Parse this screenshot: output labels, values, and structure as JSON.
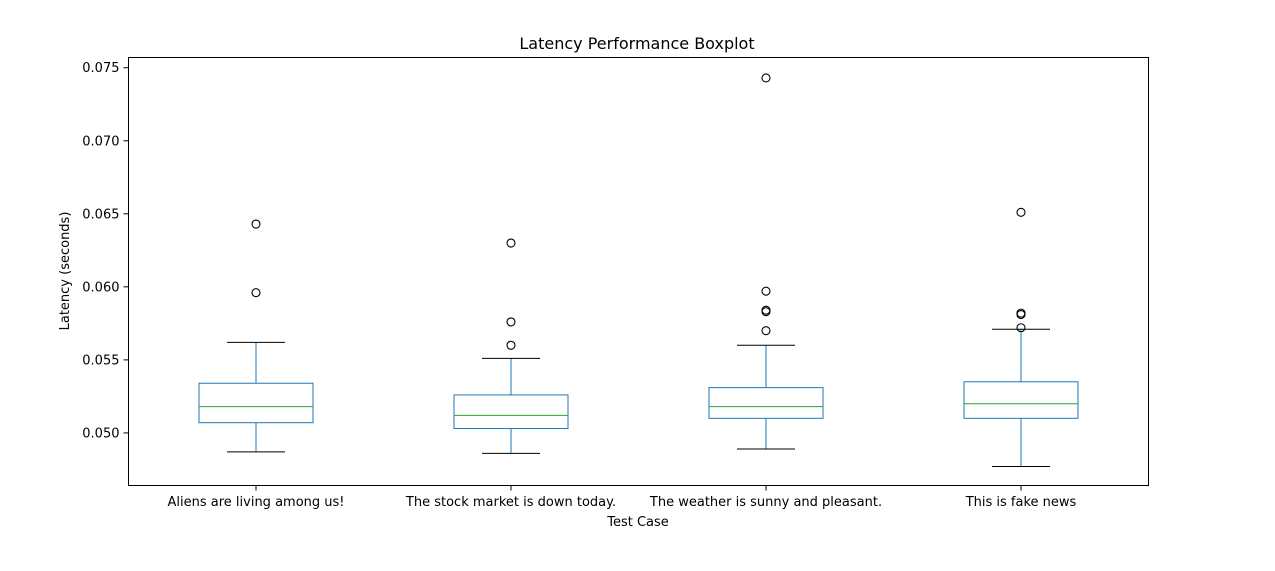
{
  "chart_data": {
    "type": "boxplot",
    "title": "Latency Performance Boxplot",
    "xlabel": "Test Case",
    "ylabel": "Latency (seconds)",
    "ylim": [
      0.0464,
      0.0757
    ],
    "yticks": [
      "0.050",
      "0.055",
      "0.060",
      "0.065",
      "0.070",
      "0.075"
    ],
    "grid": false,
    "colors": {
      "box": "#1f77b4",
      "median": "#2ca02c",
      "whisker_cap": "#000000",
      "outlier": "#000000"
    },
    "categories": [
      "Aliens are living among us!",
      "The stock market is down today.",
      "The weather is sunny and pleasant.",
      "This is fake news"
    ],
    "boxes": [
      {
        "whisker_low": 0.0487,
        "q1": 0.0507,
        "median": 0.0518,
        "q3": 0.0534,
        "whisker_high": 0.0562,
        "outliers": [
          0.0596,
          0.0643
        ]
      },
      {
        "whisker_low": 0.0486,
        "q1": 0.0503,
        "median": 0.0512,
        "q3": 0.0526,
        "whisker_high": 0.0551,
        "outliers": [
          0.056,
          0.0576,
          0.063
        ]
      },
      {
        "whisker_low": 0.0489,
        "q1": 0.051,
        "median": 0.0518,
        "q3": 0.0531,
        "whisker_high": 0.056,
        "outliers": [
          0.057,
          0.0583,
          0.0584,
          0.0597,
          0.0743
        ]
      },
      {
        "whisker_low": 0.0477,
        "q1": 0.051,
        "median": 0.052,
        "q3": 0.0535,
        "whisker_high": 0.0571,
        "outliers": [
          0.0572,
          0.0581,
          0.0582,
          0.0651
        ]
      }
    ]
  }
}
